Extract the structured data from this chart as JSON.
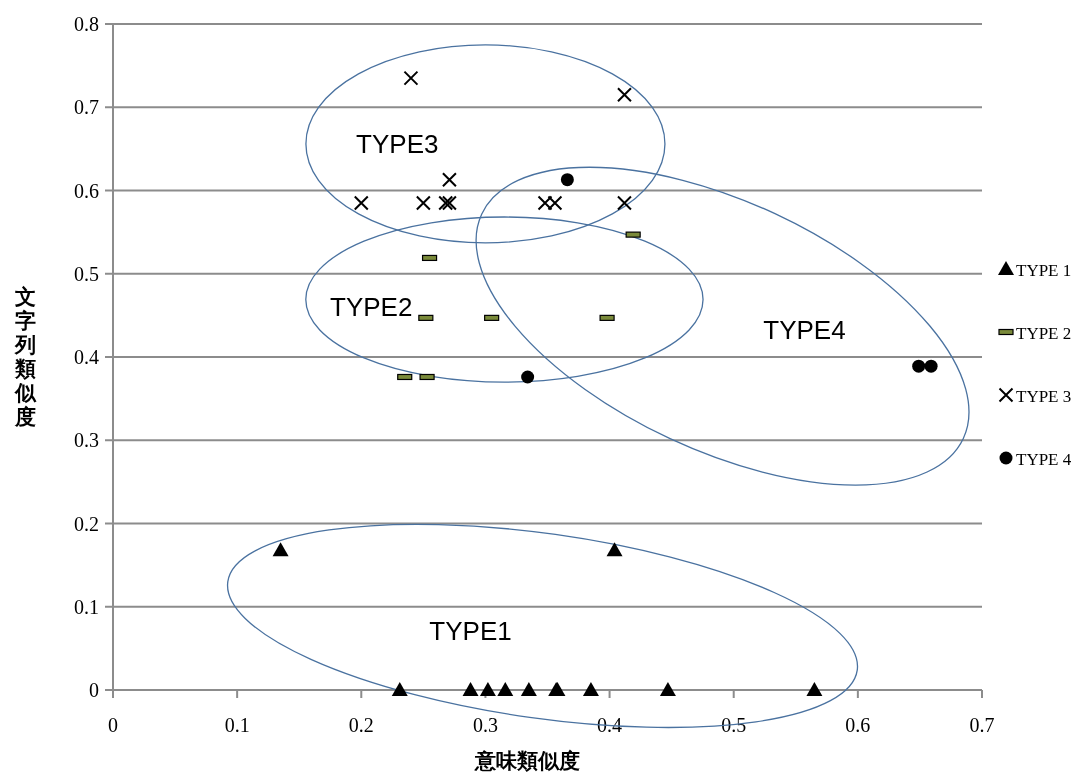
{
  "chart_data": {
    "type": "scatter",
    "xlabel": "意味類似度",
    "ylabel": "文字列類似度",
    "xlim": [
      0,
      0.7
    ],
    "ylim": [
      0,
      0.8
    ],
    "xticks": [
      0,
      0.1,
      0.2,
      0.3,
      0.4,
      0.5,
      0.6,
      0.7
    ],
    "yticks": [
      0,
      0.1,
      0.2,
      0.3,
      0.4,
      0.5,
      0.6,
      0.7,
      0.8
    ],
    "grid": "y",
    "legend": "right",
    "series": [
      {
        "name": "TYPE 1",
        "color": "#000000",
        "marker": "triangle",
        "x": [
          0.135,
          0.404,
          0.231,
          0.288,
          0.302,
          0.316,
          0.335,
          0.357,
          0.358,
          0.385,
          0.447,
          0.565
        ],
        "values": [
          0.168,
          0.168,
          0,
          0,
          0,
          0,
          0,
          0,
          0,
          0,
          0,
          0
        ]
      },
      {
        "name": "TYPE 2",
        "color": "#7a8a3a",
        "x": [
          0.255,
          0.252,
          0.305,
          0.398,
          0.419,
          0.235,
          0.253
        ],
        "values": [
          0.519,
          0.447,
          0.447,
          0.447,
          0.547,
          0.376,
          0.376
        ]
      },
      {
        "name": "TYPE 3",
        "color": "#000000",
        "marker": "cross",
        "x": [
          0.24,
          0.412,
          0.271,
          0.2,
          0.25,
          0.268,
          0.271,
          0.348,
          0.356,
          0.412
        ],
        "values": [
          0.735,
          0.715,
          0.613,
          0.585,
          0.585,
          0.585,
          0.585,
          0.585,
          0.585,
          0.585
        ]
      },
      {
        "name": "TYPE 4",
        "color": "#000000",
        "marker": "circle",
        "x": [
          0.366,
          0.334,
          0.649,
          0.659
        ],
        "values": [
          0.613,
          0.376,
          0.389,
          0.389
        ]
      }
    ],
    "annotations": [
      "TYPE3",
      "TYPE2",
      "TYPE4",
      "TYPE1"
    ]
  }
}
